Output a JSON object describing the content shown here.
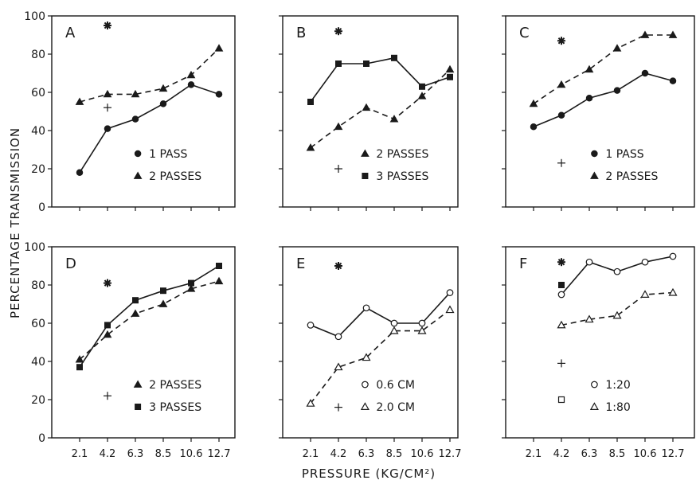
{
  "figure": {
    "ylabel": "PERCENTAGE TRANSMISSION",
    "xlabel": "PRESSURE (KG/CM²)"
  },
  "chart_data": [
    {
      "panel": "A",
      "type": "line",
      "x": [
        2.1,
        4.2,
        6.3,
        8.5,
        10.6,
        12.7
      ],
      "ylim": [
        0,
        100
      ],
      "yticks": [
        "0",
        "20",
        "40",
        "60",
        "80",
        "100"
      ],
      "xticks": [],
      "series": [
        {
          "name": "1 PASS",
          "marker": "circle",
          "filled": true,
          "dashed": false,
          "values": [
            18,
            41,
            46,
            54,
            64,
            59
          ]
        },
        {
          "name": "2 PASSES",
          "marker": "triangle",
          "filled": true,
          "dashed": true,
          "values": [
            55,
            59,
            59,
            62,
            69,
            83
          ]
        }
      ],
      "extra_marks": [
        {
          "symbol": "asterisk",
          "x": 4.2,
          "y": 95
        },
        {
          "symbol": "plus",
          "x": 4.2,
          "y": 52
        }
      ],
      "legend_position": "lower-right"
    },
    {
      "panel": "B",
      "type": "line",
      "x": [
        2.1,
        4.2,
        6.3,
        8.5,
        10.6,
        12.7
      ],
      "ylim": [
        0,
        100
      ],
      "yticks": [],
      "xticks": [],
      "series": [
        {
          "name": "2 PASSES",
          "marker": "triangle",
          "filled": true,
          "dashed": true,
          "values": [
            31,
            42,
            52,
            46,
            58,
            72
          ]
        },
        {
          "name": "3 PASSES",
          "marker": "square",
          "filled": true,
          "dashed": false,
          "values": [
            55,
            75,
            75,
            78,
            63,
            68
          ]
        }
      ],
      "extra_marks": [
        {
          "symbol": "asterisk",
          "x": 4.2,
          "y": 92
        },
        {
          "symbol": "plus",
          "x": 4.2,
          "y": 20
        }
      ],
      "legend_position": "lower-right"
    },
    {
      "panel": "C",
      "type": "line",
      "x": [
        2.1,
        4.2,
        6.3,
        8.5,
        10.6,
        12.7
      ],
      "ylim": [
        0,
        100
      ],
      "yticks": [],
      "xticks": [],
      "series": [
        {
          "name": "1 PASS",
          "marker": "circle",
          "filled": true,
          "dashed": false,
          "values": [
            42,
            48,
            57,
            61,
            70,
            66
          ]
        },
        {
          "name": "2 PASSES",
          "marker": "triangle",
          "filled": true,
          "dashed": true,
          "values": [
            54,
            64,
            72,
            83,
            90,
            90
          ]
        }
      ],
      "extra_marks": [
        {
          "symbol": "asterisk",
          "x": 4.2,
          "y": 87
        },
        {
          "symbol": "plus",
          "x": 4.2,
          "y": 23
        }
      ],
      "legend_position": "lower-right"
    },
    {
      "panel": "D",
      "type": "line",
      "x": [
        2.1,
        4.2,
        6.3,
        8.5,
        10.6,
        12.7
      ],
      "ylim": [
        0,
        100
      ],
      "yticks": [
        "0",
        "20",
        "40",
        "60",
        "80",
        "100"
      ],
      "xticks": [
        "2.1",
        "4.2",
        "6.3",
        "8.5",
        "10.6",
        "12.7"
      ],
      "series": [
        {
          "name": "2 PASSES",
          "marker": "triangle",
          "filled": true,
          "dashed": true,
          "values": [
            41,
            54,
            65,
            70,
            78,
            82
          ]
        },
        {
          "name": "3 PASSES",
          "marker": "square",
          "filled": true,
          "dashed": false,
          "values": [
            37,
            59,
            72,
            77,
            81,
            90
          ]
        }
      ],
      "extra_marks": [
        {
          "symbol": "asterisk",
          "x": 4.2,
          "y": 81
        },
        {
          "symbol": "plus",
          "x": 4.2,
          "y": 22
        }
      ],
      "legend_position": "lower-right"
    },
    {
      "panel": "E",
      "type": "line",
      "x": [
        2.1,
        4.2,
        6.3,
        8.5,
        10.6,
        12.7
      ],
      "ylim": [
        0,
        100
      ],
      "yticks": [],
      "xticks": [
        "2.1",
        "4.2",
        "6.3",
        "8.5",
        "10.6",
        "12.7"
      ],
      "series": [
        {
          "name": "0.6 CM",
          "marker": "circle",
          "filled": false,
          "dashed": false,
          "values": [
            59,
            53,
            68,
            60,
            60,
            76
          ]
        },
        {
          "name": "2.0 CM",
          "marker": "triangle",
          "filled": false,
          "dashed": true,
          "values": [
            18,
            37,
            42,
            56,
            56,
            67
          ]
        }
      ],
      "extra_marks": [
        {
          "symbol": "asterisk",
          "x": 4.2,
          "y": 90
        },
        {
          "symbol": "plus",
          "x": 4.2,
          "y": 16
        }
      ],
      "legend_position": "lower-right"
    },
    {
      "panel": "F",
      "type": "line",
      "x": [
        4.2,
        6.3,
        8.5,
        10.6,
        12.7
      ],
      "ylim": [
        0,
        100
      ],
      "yticks": [],
      "xticks": [
        "2.1",
        "4.2",
        "6.3",
        "8.5",
        "10.6",
        "12.7"
      ],
      "series": [
        {
          "name": "1:20",
          "marker": "circle",
          "filled": false,
          "dashed": false,
          "values": [
            75,
            92,
            87,
            92,
            95
          ]
        },
        {
          "name": "1:80",
          "marker": "triangle",
          "filled": false,
          "dashed": true,
          "values": [
            59,
            62,
            64,
            75,
            76
          ]
        }
      ],
      "extra_marks": [
        {
          "symbol": "asterisk",
          "x": 4.2,
          "y": 92
        },
        {
          "symbol": "filled-square",
          "x": 4.2,
          "y": 80
        },
        {
          "symbol": "plus",
          "x": 4.2,
          "y": 39
        },
        {
          "symbol": "open-square",
          "x": 4.2,
          "y": 20
        }
      ],
      "legend_position": "lower-right"
    }
  ]
}
